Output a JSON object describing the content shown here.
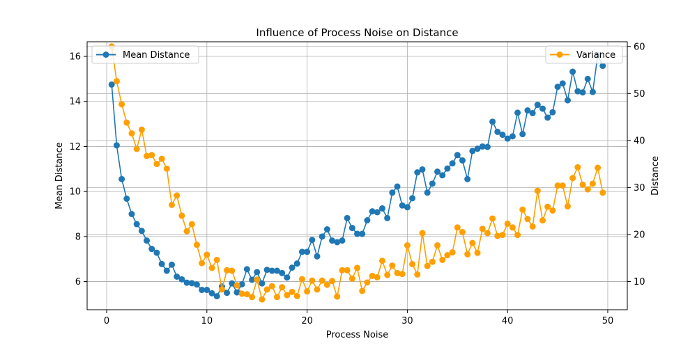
{
  "chart_data": {
    "type": "line",
    "title": "Influence of Process Noise on Distance",
    "xlabel": "Process Noise",
    "ylabel_left": "Mean Distance",
    "ylabel_right": "Distance",
    "xlim": [
      -1.95,
      51.95
    ],
    "ylim_left": [
      4.75,
      16.65
    ],
    "ylim_right": [
      4.0,
      61.0
    ],
    "xticks": [
      0,
      10,
      20,
      30,
      40,
      50
    ],
    "yticks_left": [
      6,
      8,
      10,
      12,
      14,
      16
    ],
    "yticks_right": [
      10,
      20,
      30,
      40,
      50,
      60
    ],
    "grid": true,
    "legend_left": "top-left",
    "legend_right": "top-right",
    "x": [
      0.5,
      1.0,
      1.5,
      2.0,
      2.5,
      3.0,
      3.5,
      4.0,
      4.5,
      5.0,
      5.5,
      6.0,
      6.5,
      7.0,
      7.5,
      8.0,
      8.5,
      9.0,
      9.5,
      10.0,
      10.5,
      11.0,
      11.5,
      12.0,
      12.5,
      13.0,
      13.5,
      14.0,
      14.5,
      15.0,
      15.5,
      16.0,
      16.5,
      17.0,
      17.5,
      18.0,
      18.5,
      19.0,
      19.5,
      20.0,
      20.5,
      21.0,
      21.5,
      22.0,
      22.5,
      23.0,
      23.5,
      24.0,
      24.5,
      25.0,
      25.5,
      26.0,
      26.5,
      27.0,
      27.5,
      28.0,
      28.5,
      29.0,
      29.5,
      30.0,
      30.5,
      31.0,
      31.5,
      32.0,
      32.5,
      33.0,
      33.5,
      34.0,
      34.5,
      35.0,
      35.5,
      36.0,
      36.5,
      37.0,
      37.5,
      38.0,
      38.5,
      39.0,
      39.5,
      40.0,
      40.5,
      41.0,
      41.5,
      42.0,
      42.5,
      43.0,
      43.5,
      44.0,
      44.5,
      45.0,
      45.5,
      46.0,
      46.5,
      47.0,
      47.5,
      48.0,
      48.5,
      49.0,
      49.5
    ],
    "series": [
      {
        "name": "Mean Distance",
        "axis": "left",
        "color": "#1f77b4",
        "values": [
          14.75,
          12.05,
          10.55,
          9.68,
          9.0,
          8.55,
          8.25,
          7.82,
          7.45,
          7.28,
          6.78,
          6.48,
          6.75,
          6.22,
          6.1,
          5.95,
          5.93,
          5.87,
          5.63,
          5.63,
          5.48,
          5.35,
          5.78,
          5.5,
          5.92,
          5.52,
          5.88,
          6.55,
          6.08,
          6.42,
          5.92,
          6.52,
          6.48,
          6.48,
          6.38,
          6.18,
          6.62,
          6.8,
          7.32,
          7.32,
          7.85,
          7.12,
          8.0,
          8.32,
          7.82,
          7.75,
          7.82,
          8.82,
          8.38,
          8.12,
          8.12,
          8.72,
          9.12,
          9.08,
          9.25,
          8.82,
          9.95,
          10.22,
          9.38,
          9.3,
          9.7,
          10.85,
          10.98,
          9.95,
          10.35,
          10.88,
          10.72,
          11.02,
          11.25,
          11.62,
          11.38,
          10.55,
          11.8,
          11.9,
          12.0,
          11.98,
          13.1,
          12.65,
          12.52,
          12.35,
          12.45,
          13.5,
          12.55,
          13.6,
          13.48,
          13.85,
          13.68,
          13.28,
          13.52,
          14.65,
          14.8,
          14.05,
          15.32,
          14.45,
          14.4,
          15.0,
          14.42,
          16.05,
          15.58
        ]
      },
      {
        "name": "Variance",
        "axis": "right",
        "color": "#ff9f00",
        "values": [
          60.0,
          52.6,
          47.7,
          43.8,
          41.5,
          38.2,
          42.3,
          36.7,
          36.9,
          35.0,
          36.1,
          34.0,
          26.3,
          28.3,
          24.0,
          20.7,
          22.2,
          17.8,
          13.9,
          15.7,
          12.9,
          14.6,
          8.3,
          12.4,
          12.3,
          9.2,
          7.4,
          7.3,
          6.7,
          10.4,
          6.2,
          8.3,
          9.0,
          6.7,
          8.8,
          7.1,
          7.8,
          6.9,
          10.5,
          7.9,
          10.2,
          8.3,
          10.2,
          9.3,
          10.1,
          6.8,
          12.4,
          12.4,
          10.6,
          12.9,
          8.0,
          9.8,
          11.2,
          10.9,
          14.4,
          11.4,
          13.4,
          11.8,
          11.6,
          17.7,
          13.7,
          11.5,
          20.3,
          13.3,
          14.2,
          17.7,
          14.6,
          15.6,
          16.2,
          21.5,
          20.5,
          15.8,
          18.2,
          16.1,
          21.2,
          20.3,
          23.4,
          19.7,
          19.9,
          22.3,
          21.5,
          19.9,
          25.3,
          23.3,
          21.7,
          29.3,
          23.0,
          25.9,
          25.1,
          30.4,
          30.4,
          26.0,
          32.0,
          34.3,
          30.6,
          29.6,
          30.8,
          34.2,
          28.9
        ]
      }
    ]
  }
}
